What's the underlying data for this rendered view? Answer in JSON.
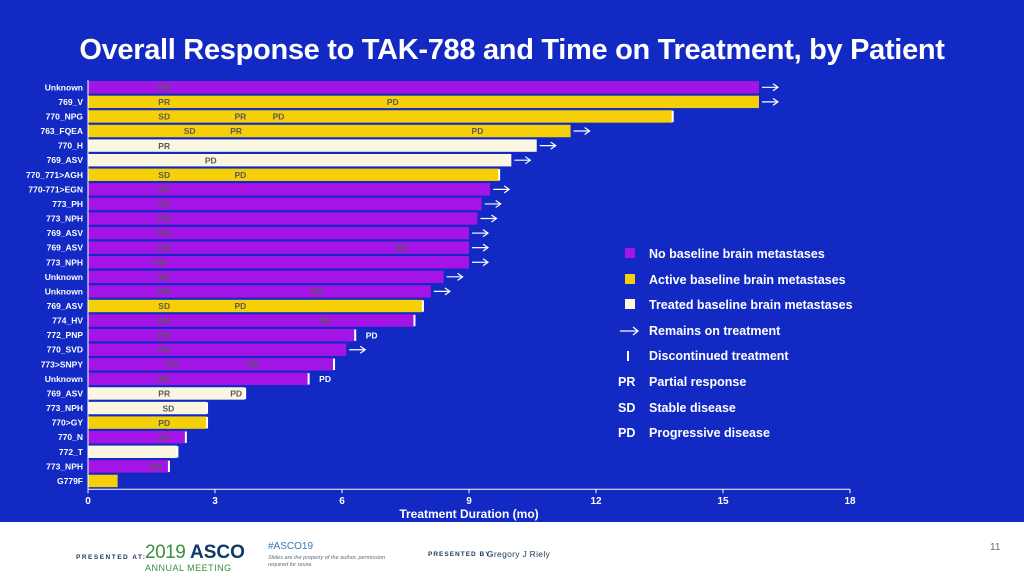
{
  "slide_title": "Overall Response to TAK-788 and Time on Treatment, by Patient",
  "colors": {
    "background": "#1229c4",
    "none": "#a514e6",
    "active": "#f5cf07",
    "treated": "#fbf6df",
    "text": "#ffffff",
    "label_on_bar": "#5a5a5a"
  },
  "chart_data": {
    "type": "bar",
    "orientation": "horizontal",
    "xlabel": "Treatment Duration (mo)",
    "xlim": [
      0,
      18
    ],
    "xticks": [
      0,
      3,
      6,
      9,
      12,
      15,
      18
    ],
    "legend": {
      "none": "No baseline brain metastases",
      "active": "Active baseline brain metastases",
      "treated": "Treated baseline brain metastases",
      "arrow": "Remains on treatment",
      "discontinued": "Discontinued treatment",
      "PR": "Partial response",
      "SD": "Stable disease",
      "PD": "Progressive disease"
    },
    "patients": [
      {
        "label": "Unknown",
        "duration": 15.85,
        "group": "none",
        "ongoing": true,
        "discontinued": false,
        "marks": [
          {
            "t": "PR",
            "x": 1.8
          }
        ]
      },
      {
        "label": "769_V",
        "duration": 15.85,
        "group": "active",
        "ongoing": true,
        "discontinued": false,
        "marks": [
          {
            "t": "PR",
            "x": 1.8
          },
          {
            "t": "PD",
            "x": 7.2
          }
        ]
      },
      {
        "label": "770_NPG",
        "duration": 13.8,
        "group": "active",
        "ongoing": false,
        "discontinued": true,
        "marks": [
          {
            "t": "SD",
            "x": 1.8
          },
          {
            "t": "PR",
            "x": 3.6
          },
          {
            "t": "PD",
            "x": 4.5
          }
        ]
      },
      {
        "label": "763_FQEA",
        "duration": 11.4,
        "group": "active",
        "ongoing": true,
        "discontinued": false,
        "marks": [
          {
            "t": "SD",
            "x": 2.4
          },
          {
            "t": "PR",
            "x": 3.5
          },
          {
            "t": "PD",
            "x": 9.2
          }
        ]
      },
      {
        "label": "770_H",
        "duration": 10.6,
        "group": "treated",
        "ongoing": true,
        "discontinued": false,
        "marks": [
          {
            "t": "PR",
            "x": 1.8
          }
        ]
      },
      {
        "label": "769_ASV",
        "duration": 10.0,
        "group": "treated",
        "ongoing": true,
        "discontinued": false,
        "marks": [
          {
            "t": "PD",
            "x": 2.9
          }
        ]
      },
      {
        "label": "770_771>AGH",
        "duration": 9.7,
        "group": "active",
        "ongoing": false,
        "discontinued": true,
        "marks": [
          {
            "t": "SD",
            "x": 1.8
          },
          {
            "t": "PD",
            "x": 3.6
          }
        ]
      },
      {
        "label": "770-771>EGN",
        "duration": 9.5,
        "group": "none",
        "ongoing": true,
        "discontinued": false,
        "marks": [
          {
            "t": "SD",
            "x": 1.8
          }
        ]
      },
      {
        "label": "773_PH",
        "duration": 9.3,
        "group": "none",
        "ongoing": true,
        "discontinued": false,
        "marks": [
          {
            "t": "SD",
            "x": 1.8
          }
        ]
      },
      {
        "label": "773_NPH",
        "duration": 9.2,
        "group": "none",
        "ongoing": true,
        "discontinued": false,
        "marks": [
          {
            "t": "PR",
            "x": 1.8
          }
        ]
      },
      {
        "label": "769_ASV",
        "duration": 9.0,
        "group": "none",
        "ongoing": true,
        "discontinued": false,
        "marks": [
          {
            "t": "PR",
            "x": 1.8
          }
        ]
      },
      {
        "label": "769_ASV",
        "duration": 9.0,
        "group": "none",
        "ongoing": true,
        "discontinued": false,
        "marks": [
          {
            "t": "PR",
            "x": 1.8
          },
          {
            "t": "PD",
            "x": 7.4
          }
        ]
      },
      {
        "label": "773_NPH",
        "duration": 9.0,
        "group": "none",
        "ongoing": true,
        "discontinued": false,
        "marks": [
          {
            "t": "PR",
            "x": 1.7
          }
        ]
      },
      {
        "label": "Unknown",
        "duration": 8.4,
        "group": "none",
        "ongoing": true,
        "discontinued": false,
        "marks": [
          {
            "t": "SD",
            "x": 1.8
          }
        ]
      },
      {
        "label": "Unknown",
        "duration": 8.1,
        "group": "none",
        "ongoing": true,
        "discontinued": false,
        "marks": [
          {
            "t": "PR",
            "x": 1.8
          },
          {
            "t": "SD",
            "x": 5.4
          }
        ]
      },
      {
        "label": "769_ASV",
        "duration": 7.9,
        "group": "active",
        "ongoing": false,
        "discontinued": true,
        "marks": [
          {
            "t": "SD",
            "x": 1.8
          },
          {
            "t": "PD",
            "x": 3.6
          }
        ]
      },
      {
        "label": "774_HV",
        "duration": 7.7,
        "group": "none",
        "ongoing": false,
        "discontinued": true,
        "marks": [
          {
            "t": "PR",
            "x": 1.8
          },
          {
            "t": "PD",
            "x": 5.6
          }
        ]
      },
      {
        "label": "772_PNP",
        "duration": 6.3,
        "group": "none",
        "ongoing": false,
        "discontinued": true,
        "marks": [
          {
            "t": "PR",
            "x": 1.8
          },
          {
            "t": "PD",
            "x": 6.7
          }
        ]
      },
      {
        "label": "770_SVD",
        "duration": 6.1,
        "group": "none",
        "ongoing": true,
        "discontinued": false,
        "marks": [
          {
            "t": "PR",
            "x": 1.8
          }
        ]
      },
      {
        "label": "773>SNPY",
        "duration": 5.8,
        "group": "none",
        "ongoing": false,
        "discontinued": true,
        "marks": [
          {
            "t": "PR",
            "x": 2.0
          },
          {
            "t": "PD",
            "x": 3.9
          }
        ]
      },
      {
        "label": "Unknown",
        "duration": 5.2,
        "group": "none",
        "ongoing": false,
        "discontinued": true,
        "marks": [
          {
            "t": "SD",
            "x": 1.8
          },
          {
            "t": "PD",
            "x": 5.6
          }
        ]
      },
      {
        "label": "769_ASV",
        "duration": 3.7,
        "group": "treated",
        "ongoing": false,
        "discontinued": true,
        "marks": [
          {
            "t": "PR",
            "x": 1.8
          },
          {
            "t": "PD",
            "x": 3.5
          }
        ]
      },
      {
        "label": "773_NPH",
        "duration": 2.8,
        "group": "treated",
        "ongoing": false,
        "discontinued": true,
        "marks": [
          {
            "t": "SD",
            "x": 1.9
          }
        ]
      },
      {
        "label": "770>GY",
        "duration": 2.8,
        "group": "active",
        "ongoing": false,
        "discontinued": true,
        "marks": [
          {
            "t": "PD",
            "x": 1.8
          }
        ]
      },
      {
        "label": "770_N",
        "duration": 2.3,
        "group": "none",
        "ongoing": false,
        "discontinued": true,
        "marks": [
          {
            "t": "SD",
            "x": 1.8
          }
        ]
      },
      {
        "label": "772_T",
        "duration": 2.1,
        "group": "treated",
        "ongoing": false,
        "discontinued": true,
        "marks": []
      },
      {
        "label": "773_NPH",
        "duration": 1.9,
        "group": "none",
        "ongoing": false,
        "discontinued": true,
        "marks": [
          {
            "t": "SD",
            "x": 1.6
          }
        ]
      },
      {
        "label": "G779F",
        "duration": 0.7,
        "group": "active",
        "ongoing": false,
        "discontinued": false,
        "marks": []
      }
    ]
  },
  "footer": {
    "presented_at": "PRESENTED AT:",
    "asco_year": "2019",
    "asco_word": "ASCO",
    "asco_sub": "ANNUAL MEETING",
    "hashtag": "#ASCO19",
    "disclaimer": "Slides are the property of the author, permission required for reuse.",
    "presented_by": "PRESENTED BY:",
    "presenter": "Gregory J Riely",
    "page_number": "11"
  }
}
